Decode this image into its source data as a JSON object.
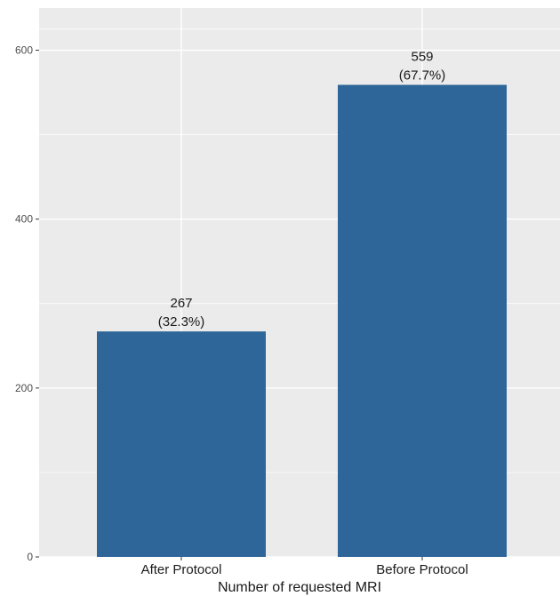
{
  "chart_data": {
    "type": "bar",
    "categories": [
      "After Protocol",
      "Before Protocol"
    ],
    "values": [
      267,
      559
    ],
    "value_labels": [
      "267",
      "559"
    ],
    "percent_labels": [
      "(32.3%)",
      "(67.7%)"
    ],
    "title": "",
    "xlabel": "Number of requested MRI",
    "ylabel": "",
    "ylim": [
      0,
      650
    ],
    "yticks": [
      0,
      200,
      400,
      600
    ],
    "ytick_labels": [
      "0",
      "200",
      "400",
      "600"
    ],
    "grid": true,
    "legend": "none",
    "colors": {
      "bar": "#2e6699",
      "panel": "#ebebeb",
      "grid": "#ffffff"
    }
  }
}
